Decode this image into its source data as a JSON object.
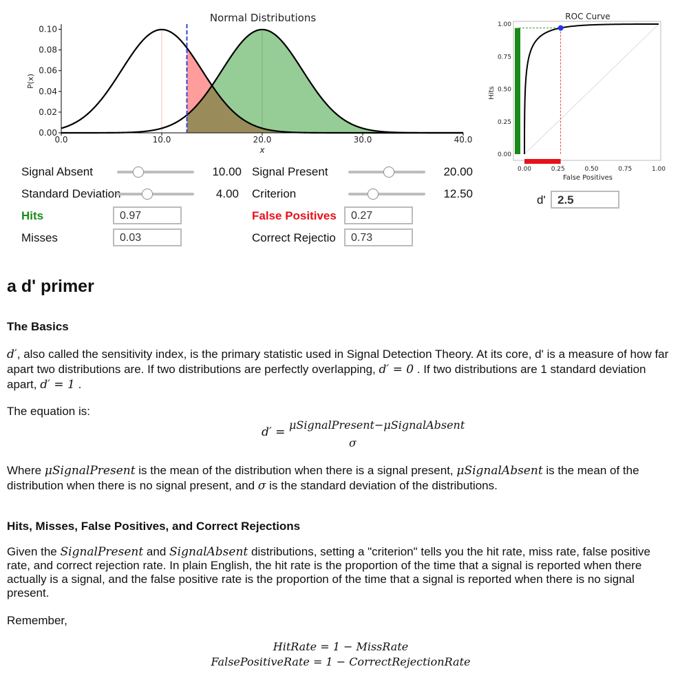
{
  "normal_plot": {
    "title": "Normal Distributions",
    "ylabel": "P(x)",
    "xlabel": "x",
    "yticks": [
      "0.00",
      "0.02",
      "0.04",
      "0.06",
      "0.08",
      "0.10"
    ],
    "xticks": [
      "0.0",
      "10.0",
      "20.0",
      "30.0",
      "40.0"
    ]
  },
  "roc_plot": {
    "title": "ROC Curve",
    "ylabel": "Hits",
    "xlabel": "False Positives",
    "yticks": [
      "0.00",
      "0.25",
      "0.50",
      "0.75",
      "1.00"
    ],
    "xticks": [
      "0.00",
      "0.25",
      "0.50",
      "0.75",
      "1.00"
    ]
  },
  "controls": {
    "signal_absent": {
      "label": "Signal Absent",
      "value": "10.00",
      "fraction": 0.27
    },
    "standard_deviation": {
      "label": "Standard Deviation",
      "value": "4.00",
      "fraction": 0.38
    },
    "signal_present": {
      "label": "Signal Present",
      "value": "20.00",
      "fraction": 0.52
    },
    "criterion": {
      "label": "Criterion",
      "value": "12.50",
      "fraction": 0.31
    },
    "hits": {
      "label": "Hits",
      "value": "0.97"
    },
    "misses": {
      "label": "Misses",
      "value": "0.03"
    },
    "false_positives": {
      "label": "False Positives",
      "value": "0.27"
    },
    "correct_rejections": {
      "label": "Correct Rejectio",
      "value": "0.73"
    },
    "dprime": {
      "label": "d'",
      "value": "2.5"
    }
  },
  "colors": {
    "hits": "#1a8a1a",
    "false_positives": "#e8101a",
    "signal": "#96cc96",
    "noise_tail": "#ff9c9c",
    "overlap": "#9a8c5a",
    "criterion_line": "#3344dd"
  },
  "doc": {
    "title": "a d' primer",
    "basics_heading": "The Basics",
    "p1_a": ", also called the sensitivity index, is the primary statistic used in Signal Detection Theory. At its core, d' is a measure of how far apart two distributions are. If two distributions are perfectly overlapping,",
    "p1_b": ". If two distributions are 1 standard deviation apart,",
    "p1_c": ".",
    "eq_intro": "The equation is:",
    "eq_num": "μSignalPresent−μSignalAbsent",
    "eq_den": "σ",
    "p2_a": "Where",
    "p2_sym1": "μSignalPresent",
    "p2_b": "is the mean of the distribution when there is a signal present,",
    "p2_sym2": "μSignalAbsent",
    "p2_c": "is the mean of the distribution when there is no signal present, and",
    "p2_sym3": "σ",
    "p2_d": "is the standard deviation of the distributions.",
    "hits_heading": "Hits, Misses, False Positives, and Correct Rejections",
    "p3_a": "Given the",
    "p3_sym1": "SignalPresent",
    "p3_b": "and",
    "p3_sym2": "SignalAbsent",
    "p3_c": "distributions, setting a \"criterion\" tells you the hit rate, miss rate, false positive rate, and correct rejection rate. In plain English, the hit rate is the proportion of the time that a signal is reported when there actually is a signal, and the false positive rate is the proportion of the time that a signal is reported when there is no signal present.",
    "remember": "Remember,",
    "eq2": "HitRate = 1 − MissRate",
    "eq3": "FalsePositiveRate = 1 − CorrectRejectionRate"
  }
}
